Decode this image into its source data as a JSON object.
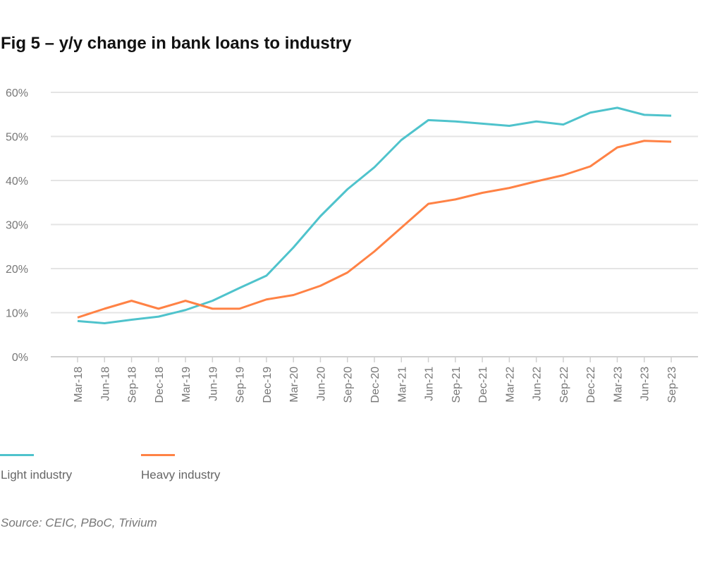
{
  "title": "Fig 5 – y/y change in bank loans to industry",
  "source": "Source: CEIC, PBoC, Trivium",
  "chart_data": {
    "type": "line",
    "title": "Fig 5 – y/y change in bank loans to industry",
    "xlabel": "",
    "ylabel": "",
    "ylim": [
      0,
      60
    ],
    "yticks": [
      "0%",
      "10%",
      "20%",
      "30%",
      "40%",
      "50%",
      "60%"
    ],
    "grid": true,
    "legend_position": "bottom-left",
    "categories": [
      "Mar-18",
      "Jun-18",
      "Sep-18",
      "Dec-18",
      "Mar-19",
      "Jun-19",
      "Sep-19",
      "Dec-19",
      "Mar-20",
      "Jun-20",
      "Sep-20",
      "Dec-20",
      "Mar-21",
      "Jun-21",
      "Sep-21",
      "Dec-21",
      "Mar-22",
      "Jun-22",
      "Sep-22",
      "Dec-22",
      "Mar-23",
      "Jun-23",
      "Sep-23"
    ],
    "series": [
      {
        "name": "Light industry",
        "color": "#4fc3cc",
        "values": [
          8.1,
          7.6,
          8.4,
          9.1,
          10.6,
          12.7,
          15.6,
          18.4,
          24.8,
          31.9,
          38.0,
          43.0,
          49.2,
          53.7,
          53.4,
          52.9,
          52.4,
          53.4,
          52.7,
          55.4,
          56.5,
          54.9,
          54.7
        ]
      },
      {
        "name": "Heavy industry",
        "color": "#ff8245",
        "values": [
          8.9,
          10.9,
          12.7,
          10.9,
          12.7,
          10.9,
          10.9,
          13.0,
          14.0,
          16.1,
          19.1,
          23.9,
          29.3,
          34.7,
          35.7,
          37.2,
          38.3,
          39.8,
          41.2,
          43.2,
          47.5,
          49.0,
          48.8
        ]
      }
    ]
  }
}
